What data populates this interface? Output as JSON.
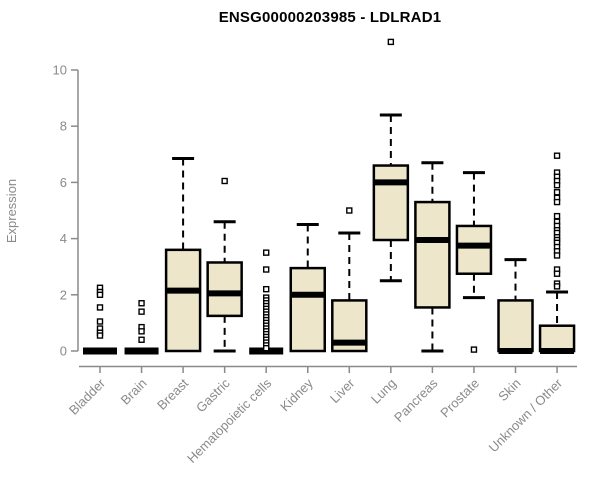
{
  "chart_data": {
    "type": "box",
    "title": "ENSG00000203985 - LDLRAD1",
    "xlabel": "",
    "ylabel": "Expression",
    "ylim": [
      0,
      11.1
    ],
    "yticks": [
      0,
      2,
      4,
      6,
      8,
      10
    ],
    "grid": false,
    "legend": "none",
    "colors": {
      "box_fill": "#EDE6CB",
      "box_stroke": "#000000",
      "median": "#000000",
      "whisker": "#000000",
      "outlier_fill": "#FFFFFF",
      "axis": "#8A8A8A",
      "title": "#000000",
      "background": "#FFFFFF"
    },
    "categories": [
      "Bladder",
      "Brain",
      "Breast",
      "Gastric",
      "Hematopoietic cells",
      "Kidney",
      "Liver",
      "Lung",
      "Pancreas",
      "Prostate",
      "Skin",
      "Unknown / Other"
    ],
    "series": [
      {
        "label": "Bladder",
        "q1": 0,
        "median": 0,
        "q3": 0,
        "whisker_low": 0,
        "whisker_high": 0,
        "outliers": [
          2.25,
          2.1,
          2.0,
          1.55,
          1.05,
          0.8,
          0.65,
          0.55
        ]
      },
      {
        "label": "Brain",
        "q1": 0,
        "median": 0,
        "q3": 0,
        "whisker_low": 0,
        "whisker_high": 0,
        "outliers": [
          1.7,
          1.4,
          0.85,
          0.7,
          0.4
        ]
      },
      {
        "label": "Breast",
        "q1": 0,
        "median": 2.15,
        "q3": 3.6,
        "whisker_low": 0,
        "whisker_high": 6.85,
        "outliers": []
      },
      {
        "label": "Gastric",
        "q1": 1.25,
        "median": 2.05,
        "q3": 3.15,
        "whisker_low": 0,
        "whisker_high": 4.6,
        "outliers": [
          6.05
        ]
      },
      {
        "label": "Hematopoietic cells",
        "q1": 0,
        "median": 0,
        "q3": 0,
        "whisker_low": 0,
        "whisker_high": 0,
        "outliers": [
          3.5,
          2.9,
          2.2,
          1.9,
          1.8,
          1.7,
          1.6,
          1.5,
          1.4,
          1.3,
          1.2,
          1.1,
          1.0,
          0.9,
          0.8,
          0.7,
          0.6,
          0.5,
          0.4,
          0.3,
          0.2,
          0.1
        ]
      },
      {
        "label": "Kidney",
        "q1": 0,
        "median": 2.0,
        "q3": 2.95,
        "whisker_low": 0,
        "whisker_high": 4.5,
        "outliers": []
      },
      {
        "label": "Liver",
        "q1": 0,
        "median": 0.3,
        "q3": 1.8,
        "whisker_low": 0,
        "whisker_high": 4.2,
        "outliers": [
          5.0
        ]
      },
      {
        "label": "Lung",
        "q1": 3.95,
        "median": 6.0,
        "q3": 6.6,
        "whisker_low": 2.5,
        "whisker_high": 8.4,
        "outliers": [
          11.0
        ]
      },
      {
        "label": "Pancreas",
        "q1": 1.55,
        "median": 3.95,
        "q3": 5.3,
        "whisker_low": 0,
        "whisker_high": 6.7,
        "outliers": []
      },
      {
        "label": "Prostate",
        "q1": 2.75,
        "median": 3.75,
        "q3": 4.45,
        "whisker_low": 1.9,
        "whisker_high": 6.35,
        "outliers": [
          0.05
        ]
      },
      {
        "label": "Skin",
        "q1": 0,
        "median": 0,
        "q3": 1.8,
        "whisker_low": 0,
        "whisker_high": 3.25,
        "outliers": []
      },
      {
        "label": "Unknown / Other",
        "q1": 0,
        "median": 0,
        "q3": 0.9,
        "whisker_low": 0,
        "whisker_high": 2.1,
        "outliers": [
          6.95,
          6.35,
          6.2,
          6.05,
          5.9,
          5.65,
          5.45,
          5.3,
          4.8,
          4.6,
          4.45,
          4.3,
          4.2,
          4.05,
          3.95,
          3.85,
          3.7,
          3.55,
          3.4,
          2.9,
          2.75,
          2.4,
          2.3
        ]
      }
    ]
  }
}
